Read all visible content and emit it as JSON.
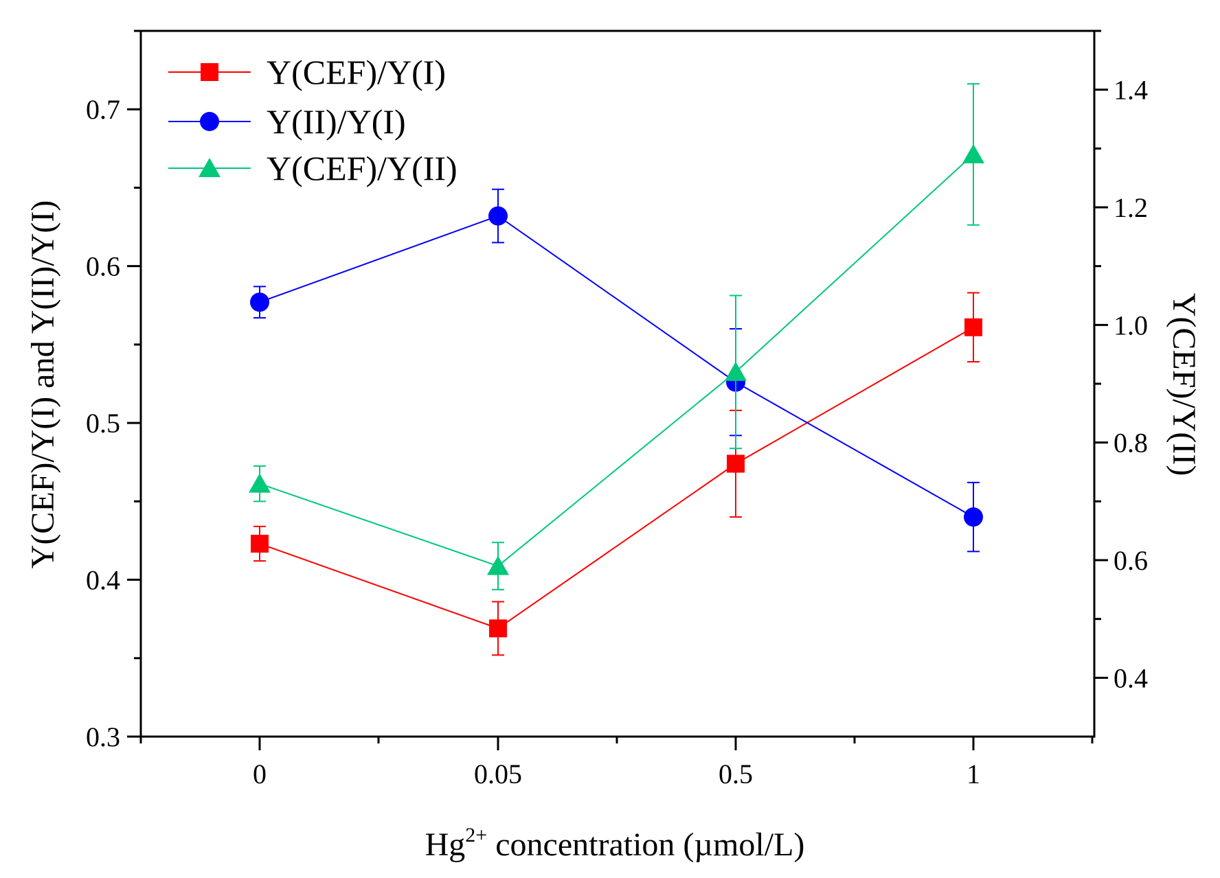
{
  "chart_data": {
    "type": "line",
    "categories": [
      "0",
      "0.05",
      "0.5",
      "1"
    ],
    "xlabel": {
      "base": "Hg",
      "sup": "2+",
      "rest": " concentration (µmol/L)"
    },
    "ylabel_left": "Y(CEF)/Y(I) and Y(II)/Y(I)",
    "ylabel_right": "Y(CEF)/Y(II)",
    "ylim_left": [
      0.3,
      0.75
    ],
    "yticks_left": [
      "0.3",
      "0.4",
      "0.5",
      "0.6",
      "0.7"
    ],
    "ylim_right": [
      0.3,
      1.5
    ],
    "yticks_right": [
      "0.4",
      "0.6",
      "0.8",
      "1.0",
      "1.2",
      "1.4"
    ],
    "legend_position": "top-left",
    "series": [
      {
        "name": "Y(CEF)/Y(I)",
        "axis": "left",
        "color": "#ff0000",
        "marker": "square",
        "values": [
          0.423,
          0.369,
          0.474,
          0.561
        ],
        "errors": [
          0.011,
          0.017,
          0.034,
          0.022
        ]
      },
      {
        "name": "Y(II)/Y(I)",
        "axis": "left",
        "color": "#0000ff",
        "marker": "circle",
        "values": [
          0.577,
          0.632,
          0.526,
          0.44
        ],
        "errors": [
          0.01,
          0.017,
          0.034,
          0.022
        ]
      },
      {
        "name": "Y(CEF)/Y(II)",
        "axis": "right",
        "color": "#00c87a",
        "marker": "triangle",
        "values": [
          0.73,
          0.59,
          0.92,
          1.29
        ],
        "errors": [
          0.03,
          0.04,
          0.13,
          0.12
        ]
      }
    ]
  }
}
